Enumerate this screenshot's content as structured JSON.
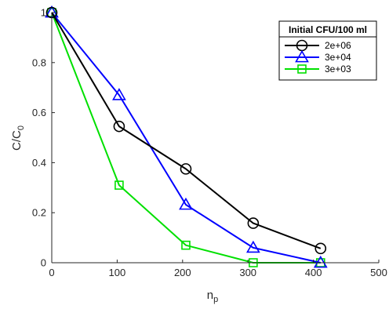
{
  "chart_data": {
    "type": "line",
    "xlabel": "n",
    "xlabel_sub": "p",
    "ylabel": "C/C",
    "ylabel_sub": "0",
    "xlim": [
      0,
      500
    ],
    "ylim": [
      0,
      1
    ],
    "xticks": [
      0,
      100,
      200,
      300,
      400,
      500
    ],
    "yticks": [
      0,
      0.2,
      0.4,
      0.6,
      0.8,
      1
    ],
    "ytick_labels": [
      "0",
      "0.2",
      "0.4",
      "0.6",
      "0.8",
      "1"
    ],
    "grid": false,
    "legend": {
      "title": "Initial CFU/100 ml",
      "position": "top-right"
    },
    "series": [
      {
        "name": "2e+06",
        "color": "#000000",
        "marker": "circle",
        "x": [
          0,
          103,
          205,
          308,
          411
        ],
        "y": [
          1.0,
          0.545,
          0.375,
          0.158,
          0.057
        ]
      },
      {
        "name": "3e+04",
        "color": "#0000ff",
        "marker": "triangle",
        "x": [
          0,
          103,
          205,
          308,
          411
        ],
        "y": [
          1.0,
          0.67,
          0.232,
          0.06,
          0.0
        ]
      },
      {
        "name": "3e+03",
        "color": "#00e000",
        "marker": "square",
        "x": [
          0,
          103,
          205,
          308,
          411
        ],
        "y": [
          1.0,
          0.31,
          0.07,
          0.0,
          0.0
        ]
      }
    ]
  }
}
